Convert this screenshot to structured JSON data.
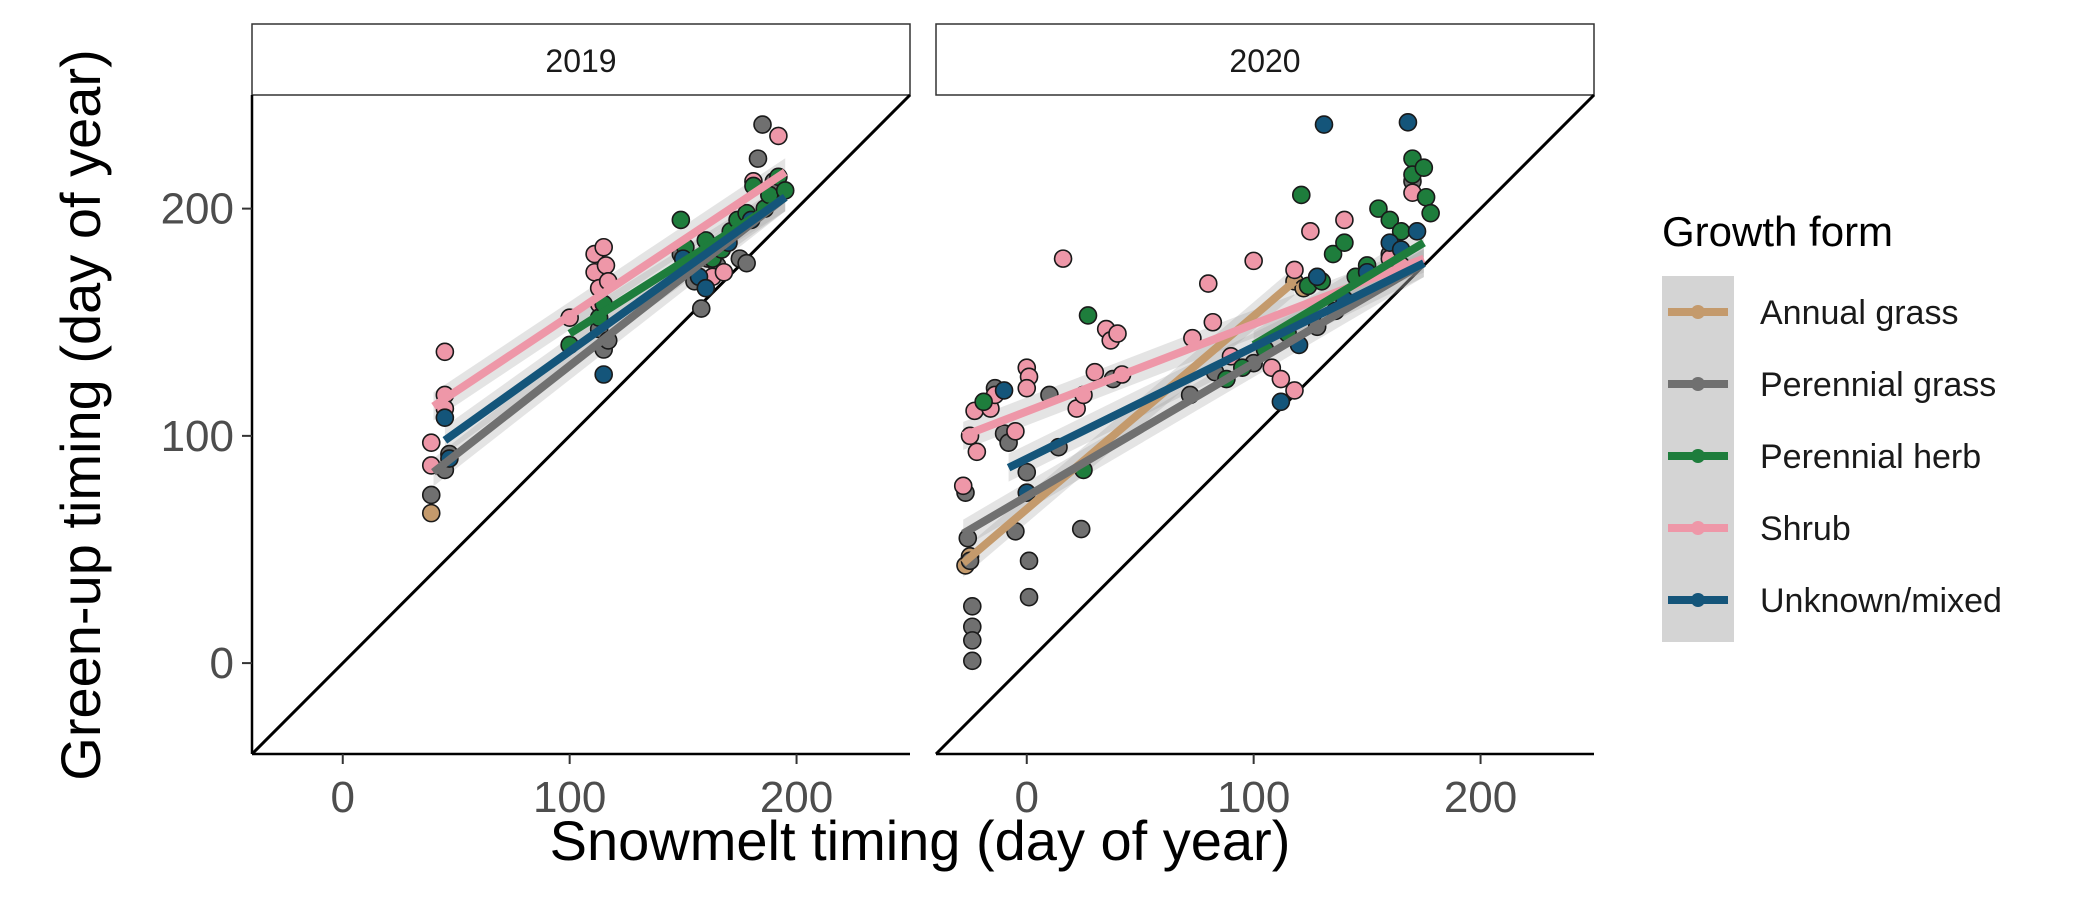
{
  "chart_data": {
    "type": "scatter",
    "title": "",
    "xlabel": "Snowmelt timing (day of year)",
    "ylabel": "Green-up timing (day of year)",
    "xlim": [
      -40,
      250
    ],
    "ylim": [
      -40,
      250
    ],
    "x_ticks": [
      "0",
      "100",
      "200"
    ],
    "y_ticks": [
      "0",
      "100",
      "200"
    ],
    "grid": false,
    "reference_line": "1:1",
    "legend": {
      "title": "Growth form",
      "position": "right",
      "entries": [
        "Annual grass",
        "Perennial grass",
        "Perennial herb",
        "Shrub",
        "Unknown/mixed"
      ]
    },
    "colors": {
      "Annual grass": "#c49a6c",
      "Perennial grass": "#707070",
      "Perennial herb": "#1e7d3c",
      "Shrub": "#ee97a8",
      "Unknown/mixed": "#14557a"
    },
    "panels": [
      {
        "label": "2019",
        "series": [
          {
            "name": "Annual grass",
            "points": [
              [
                39,
                66
              ]
            ]
          },
          {
            "name": "Perennial grass",
            "points": [
              [
                39,
                74
              ],
              [
                45,
                85
              ],
              [
                47,
                92
              ],
              [
                113,
                147
              ],
              [
                115,
                138
              ],
              [
                117,
                142
              ],
              [
                149,
                180
              ],
              [
                155,
                168
              ],
              [
                158,
                156
              ],
              [
                161,
                178
              ],
              [
                165,
                175
              ],
              [
                175,
                178
              ],
              [
                178,
                176
              ],
              [
                183,
                222
              ],
              [
                185,
                237
              ],
              [
                190,
                212
              ]
            ],
            "fit": [
              [
                40,
                84
              ],
              [
                195,
                205
              ]
            ]
          },
          {
            "name": "Perennial herb",
            "points": [
              [
                100,
                140
              ],
              [
                113,
                152
              ],
              [
                115,
                158
              ],
              [
                149,
                195
              ],
              [
                151,
                183
              ],
              [
                160,
                186
              ],
              [
                163,
                178
              ],
              [
                167,
                182
              ],
              [
                171,
                190
              ],
              [
                174,
                195
              ],
              [
                178,
                198
              ],
              [
                181,
                210
              ],
              [
                186,
                200
              ],
              [
                188,
                206
              ],
              [
                192,
                214
              ],
              [
                195,
                208
              ]
            ],
            "fit": [
              [
                100,
                145
              ],
              [
                195,
                205
              ]
            ]
          },
          {
            "name": "Shrub",
            "points": [
              [
                39,
                97
              ],
              [
                39,
                87
              ],
              [
                45,
                137
              ],
              [
                45,
                118
              ],
              [
                45,
                112
              ],
              [
                100,
                152
              ],
              [
                111,
                180
              ],
              [
                111,
                172
              ],
              [
                113,
                165
              ],
              [
                113,
                158
              ],
              [
                115,
                183
              ],
              [
                116,
                175
              ],
              [
                117,
                168
              ],
              [
                151,
                178
              ],
              [
                163,
                170
              ],
              [
                168,
                172
              ],
              [
                181,
                212
              ],
              [
                192,
                232
              ]
            ],
            "fit": [
              [
                40,
                113
              ],
              [
                195,
                216
              ]
            ]
          },
          {
            "name": "Unknown/mixed",
            "points": [
              [
                45,
                108
              ],
              [
                47,
                90
              ],
              [
                115,
                127
              ],
              [
                150,
                178
              ],
              [
                157,
                170
              ],
              [
                160,
                165
              ],
              [
                170,
                185
              ],
              [
                180,
                195
              ]
            ],
            "fit": [
              [
                45,
                98
              ],
              [
                195,
                205
              ]
            ]
          }
        ]
      },
      {
        "label": "2020",
        "series": [
          {
            "name": "Annual grass",
            "points": [
              [
                -27,
                43
              ],
              [
                -25,
                47
              ],
              [
                118,
                168
              ],
              [
                122,
                165
              ]
            ],
            "fit": [
              [
                -28,
                44
              ],
              [
                118,
                168
              ]
            ]
          },
          {
            "name": "Perennial grass",
            "points": [
              [
                -27,
                75
              ],
              [
                -26,
                55
              ],
              [
                -25,
                45
              ],
              [
                -24,
                25
              ],
              [
                -24,
                16
              ],
              [
                -24,
                10
              ],
              [
                -24,
                1
              ],
              [
                -14,
                121
              ],
              [
                -10,
                101
              ],
              [
                -8,
                97
              ],
              [
                -5,
                58
              ],
              [
                0,
                84
              ],
              [
                1,
                45
              ],
              [
                1,
                29
              ],
              [
                10,
                118
              ],
              [
                14,
                95
              ],
              [
                24,
                59
              ],
              [
                38,
                125
              ],
              [
                72,
                118
              ],
              [
                83,
                128
              ],
              [
                100,
                132
              ],
              [
                128,
                148
              ],
              [
                136,
                155
              ],
              [
                160,
                180
              ],
              [
                170,
                212
              ]
            ],
            "fit": [
              [
                -28,
                57
              ],
              [
                175,
                176
              ]
            ]
          },
          {
            "name": "Perennial herb",
            "points": [
              [
                -19,
                115
              ],
              [
                25,
                85
              ],
              [
                27,
                153
              ],
              [
                88,
                125
              ],
              [
                95,
                130
              ],
              [
                105,
                138
              ],
              [
                115,
                145
              ],
              [
                121,
                206
              ],
              [
                124,
                166
              ],
              [
                130,
                168
              ],
              [
                135,
                180
              ],
              [
                140,
                185
              ],
              [
                145,
                170
              ],
              [
                150,
                175
              ],
              [
                155,
                200
              ],
              [
                160,
                195
              ],
              [
                165,
                190
              ],
              [
                170,
                222
              ],
              [
                170,
                215
              ],
              [
                175,
                218
              ],
              [
                176,
                205
              ],
              [
                178,
                198
              ]
            ],
            "fit": [
              [
                100,
                140
              ],
              [
                175,
                185
              ]
            ]
          },
          {
            "name": "Shrub",
            "points": [
              [
                -28,
                78
              ],
              [
                -25,
                100
              ],
              [
                -23,
                111
              ],
              [
                -22,
                93
              ],
              [
                -16,
                112
              ],
              [
                -14,
                118
              ],
              [
                -5,
                102
              ],
              [
                0,
                130
              ],
              [
                1,
                126
              ],
              [
                0,
                121
              ],
              [
                16,
                178
              ],
              [
                22,
                112
              ],
              [
                25,
                118
              ],
              [
                30,
                128
              ],
              [
                35,
                147
              ],
              [
                37,
                142
              ],
              [
                40,
                145
              ],
              [
                42,
                127
              ],
              [
                73,
                143
              ],
              [
                80,
                167
              ],
              [
                82,
                150
              ],
              [
                90,
                135
              ],
              [
                100,
                177
              ],
              [
                108,
                130
              ],
              [
                112,
                125
              ],
              [
                118,
                120
              ],
              [
                118,
                173
              ],
              [
                125,
                190
              ],
              [
                140,
                195
              ],
              [
                160,
                178
              ],
              [
                165,
                175
              ],
              [
                170,
                207
              ]
            ],
            "fit": [
              [
                -28,
                100
              ],
              [
                175,
                178
              ]
            ]
          },
          {
            "name": "Unknown/mixed",
            "points": [
              [
                -10,
                120
              ],
              [
                0,
                75
              ],
              [
                112,
                115
              ],
              [
                120,
                140
              ],
              [
                128,
                170
              ],
              [
                131,
                237
              ],
              [
                140,
                160
              ],
              [
                150,
                172
              ],
              [
                160,
                185
              ],
              [
                165,
                182
              ],
              [
                168,
                238
              ],
              [
                172,
                190
              ]
            ],
            "fit": [
              [
                -8,
                86
              ],
              [
                175,
                176
              ]
            ]
          }
        ]
      }
    ]
  }
}
